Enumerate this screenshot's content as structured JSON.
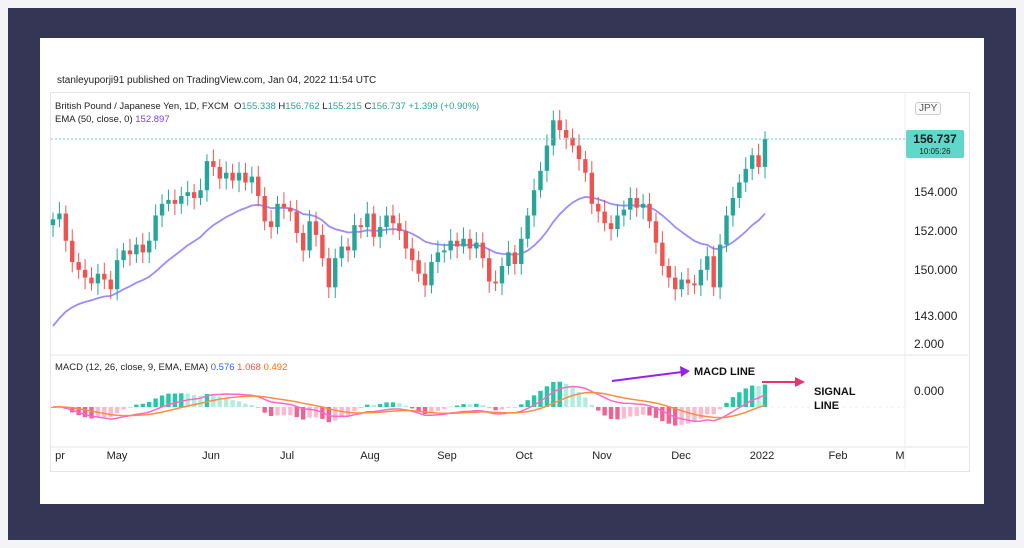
{
  "publisher_line": "stanleyuporji91 published on TradingView.com, Jan 04, 2022 11:54 UTC",
  "legend": {
    "symbol": "British Pound / Japanese Yen, 1D, FXCM",
    "o_label": "O",
    "o_value": "155.338",
    "h_label": "H",
    "h_value": "156.762",
    "l_label": "L",
    "l_value": "155.215",
    "c_label": "C",
    "c_value": "156.737",
    "change": "+1.399 (+0.90%)",
    "ema_label": "EMA (50, close, 0)",
    "ema_value": "152.897",
    "macd_label": "MACD (12, 26, close, 9, EMA, EMA)",
    "macd_v1": "0.576",
    "macd_v2": "1.068",
    "macd_v3": "0.492"
  },
  "currency_badge": "JPY",
  "price_badge": {
    "value": "156.737",
    "time": "10:05:26"
  },
  "annotations": {
    "macd": "MACD LINE",
    "signal1": "SIGNAL",
    "signal2": "LINE"
  },
  "colors": {
    "up": "#26a69a",
    "down": "#ef5350",
    "ema": "#9b8cff",
    "macd": "#ff66cc",
    "signal": "#ff8c42",
    "badge": "#5fd8c9"
  },
  "chart_data": [
    {
      "type": "candlestick",
      "title": "British Pound / Japanese Yen, 1D, FXCM",
      "y_ticks": [
        "156.737",
        "154.000",
        "152.000",
        "150.000",
        "143.000",
        "2.000"
      ],
      "x_ticks": [
        "pr",
        "May",
        "Jun",
        "Jul",
        "Aug",
        "Sep",
        "Oct",
        "Nov",
        "Dec",
        "2022",
        "Feb",
        "M"
      ],
      "last_value": 156.737,
      "ema_last": 152.897,
      "close_path": [
        {
          "date": "Apr",
          "close": 152.6
        },
        {
          "date": "Apr",
          "close": 152.9
        },
        {
          "date": "Apr",
          "close": 151.5
        },
        {
          "date": "Apr",
          "close": 150.4
        },
        {
          "date": "Apr",
          "close": 150.0
        },
        {
          "date": "Apr",
          "close": 149.6
        },
        {
          "date": "Apr",
          "close": 149.3
        },
        {
          "date": "Apr",
          "close": 149.8
        },
        {
          "date": "Apr",
          "close": 149.5
        },
        {
          "date": "May",
          "close": 149.0
        },
        {
          "date": "May",
          "close": 150.5
        },
        {
          "date": "May",
          "close": 151.0
        },
        {
          "date": "May",
          "close": 150.8
        },
        {
          "date": "May",
          "close": 151.3
        },
        {
          "date": "May",
          "close": 150.9
        },
        {
          "date": "May",
          "close": 151.5
        },
        {
          "date": "May",
          "close": 152.8
        },
        {
          "date": "May",
          "close": 153.4
        },
        {
          "date": "May",
          "close": 153.6
        },
        {
          "date": "May",
          "close": 153.4
        },
        {
          "date": "May",
          "close": 153.8
        },
        {
          "date": "May",
          "close": 154.0
        },
        {
          "date": "May",
          "close": 153.7
        },
        {
          "date": "May",
          "close": 154.1
        },
        {
          "date": "Jun",
          "close": 155.6
        },
        {
          "date": "Jun",
          "close": 155.3
        },
        {
          "date": "Jun",
          "close": 154.7
        },
        {
          "date": "Jun",
          "close": 155.0
        },
        {
          "date": "Jun",
          "close": 154.6
        },
        {
          "date": "Jun",
          "close": 155.0
        },
        {
          "date": "Jun",
          "close": 154.5
        },
        {
          "date": "Jun",
          "close": 154.8
        },
        {
          "date": "Jun",
          "close": 153.8
        },
        {
          "date": "Jun",
          "close": 152.5
        },
        {
          "date": "Jun",
          "close": 152.2
        },
        {
          "date": "Jun",
          "close": 153.4
        },
        {
          "date": "Jul",
          "close": 153.2
        },
        {
          "date": "Jul",
          "close": 153.0
        },
        {
          "date": "Jul",
          "close": 151.9
        },
        {
          "date": "Jul",
          "close": 151.0
        },
        {
          "date": "Jul",
          "close": 152.5
        },
        {
          "date": "Jul",
          "close": 151.8
        },
        {
          "date": "Jul",
          "close": 150.6
        },
        {
          "date": "Jul",
          "close": 149.1
        },
        {
          "date": "Jul",
          "close": 150.6
        },
        {
          "date": "Jul",
          "close": 151.2
        },
        {
          "date": "Jul",
          "close": 151.0
        },
        {
          "date": "Jul",
          "close": 152.3
        },
        {
          "date": "Aug",
          "close": 152.2
        },
        {
          "date": "Aug",
          "close": 152.9
        },
        {
          "date": "Aug",
          "close": 151.7
        },
        {
          "date": "Aug",
          "close": 152.2
        },
        {
          "date": "Aug",
          "close": 152.8
        },
        {
          "date": "Aug",
          "close": 152.4
        },
        {
          "date": "Aug",
          "close": 152.0
        },
        {
          "date": "Aug",
          "close": 151.1
        },
        {
          "date": "Aug",
          "close": 150.5
        },
        {
          "date": "Aug",
          "close": 149.8
        },
        {
          "date": "Aug",
          "close": 149.2
        },
        {
          "date": "Aug",
          "close": 150.4
        },
        {
          "date": "Sep",
          "close": 150.9
        },
        {
          "date": "Sep",
          "close": 151.0
        },
        {
          "date": "Sep",
          "close": 151.5
        },
        {
          "date": "Sep",
          "close": 151.2
        },
        {
          "date": "Sep",
          "close": 151.6
        },
        {
          "date": "Sep",
          "close": 151.1
        },
        {
          "date": "Sep",
          "close": 151.4
        },
        {
          "date": "Sep",
          "close": 150.6
        },
        {
          "date": "Sep",
          "close": 149.4
        },
        {
          "date": "Sep",
          "close": 149.3
        },
        {
          "date": "Sep",
          "close": 150.2
        },
        {
          "date": "Sep",
          "close": 150.9
        },
        {
          "date": "Oct",
          "close": 150.3
        },
        {
          "date": "Oct",
          "close": 151.6
        },
        {
          "date": "Oct",
          "close": 152.8
        },
        {
          "date": "Oct",
          "close": 154.1
        },
        {
          "date": "Oct",
          "close": 155.1
        },
        {
          "date": "Oct",
          "close": 156.4
        },
        {
          "date": "Oct",
          "close": 157.7
        },
        {
          "date": "Oct",
          "close": 157.2
        },
        {
          "date": "Oct",
          "close": 156.8
        },
        {
          "date": "Oct",
          "close": 156.4
        },
        {
          "date": "Oct",
          "close": 155.7
        },
        {
          "date": "Oct",
          "close": 155.0
        },
        {
          "date": "Nov",
          "close": 153.4
        },
        {
          "date": "Nov",
          "close": 153.0
        },
        {
          "date": "Nov",
          "close": 152.4
        },
        {
          "date": "Nov",
          "close": 152.1
        },
        {
          "date": "Nov",
          "close": 152.8
        },
        {
          "date": "Nov",
          "close": 153.1
        },
        {
          "date": "Nov",
          "close": 153.7
        },
        {
          "date": "Nov",
          "close": 153.2
        },
        {
          "date": "Nov",
          "close": 153.4
        },
        {
          "date": "Nov",
          "close": 152.5
        },
        {
          "date": "Nov",
          "close": 151.4
        },
        {
          "date": "Nov",
          "close": 150.2
        },
        {
          "date": "Dec",
          "close": 149.6
        },
        {
          "date": "Dec",
          "close": 149.0
        },
        {
          "date": "Dec",
          "close": 149.5
        },
        {
          "date": "Dec",
          "close": 149.3
        },
        {
          "date": "Dec",
          "close": 149.2
        },
        {
          "date": "Dec",
          "close": 150.0
        },
        {
          "date": "Dec",
          "close": 150.7
        },
        {
          "date": "Dec",
          "close": 149.1
        },
        {
          "date": "Dec",
          "close": 151.3
        },
        {
          "date": "Dec",
          "close": 152.8
        },
        {
          "date": "Dec",
          "close": 153.7
        },
        {
          "date": "Dec",
          "close": 154.5
        },
        {
          "date": "Jan",
          "close": 155.2
        },
        {
          "date": "Jan",
          "close": 155.9
        },
        {
          "date": "Jan",
          "close": 155.3
        },
        {
          "date": "Jan",
          "close": 156.737
        }
      ]
    },
    {
      "type": "line",
      "title": "MACD (12, 26, close, 9, EMA, EMA)",
      "y_ticks": [
        "0.000"
      ],
      "values_shown": {
        "histogram": 0.576,
        "macd": 1.068,
        "signal": 0.492
      }
    }
  ]
}
